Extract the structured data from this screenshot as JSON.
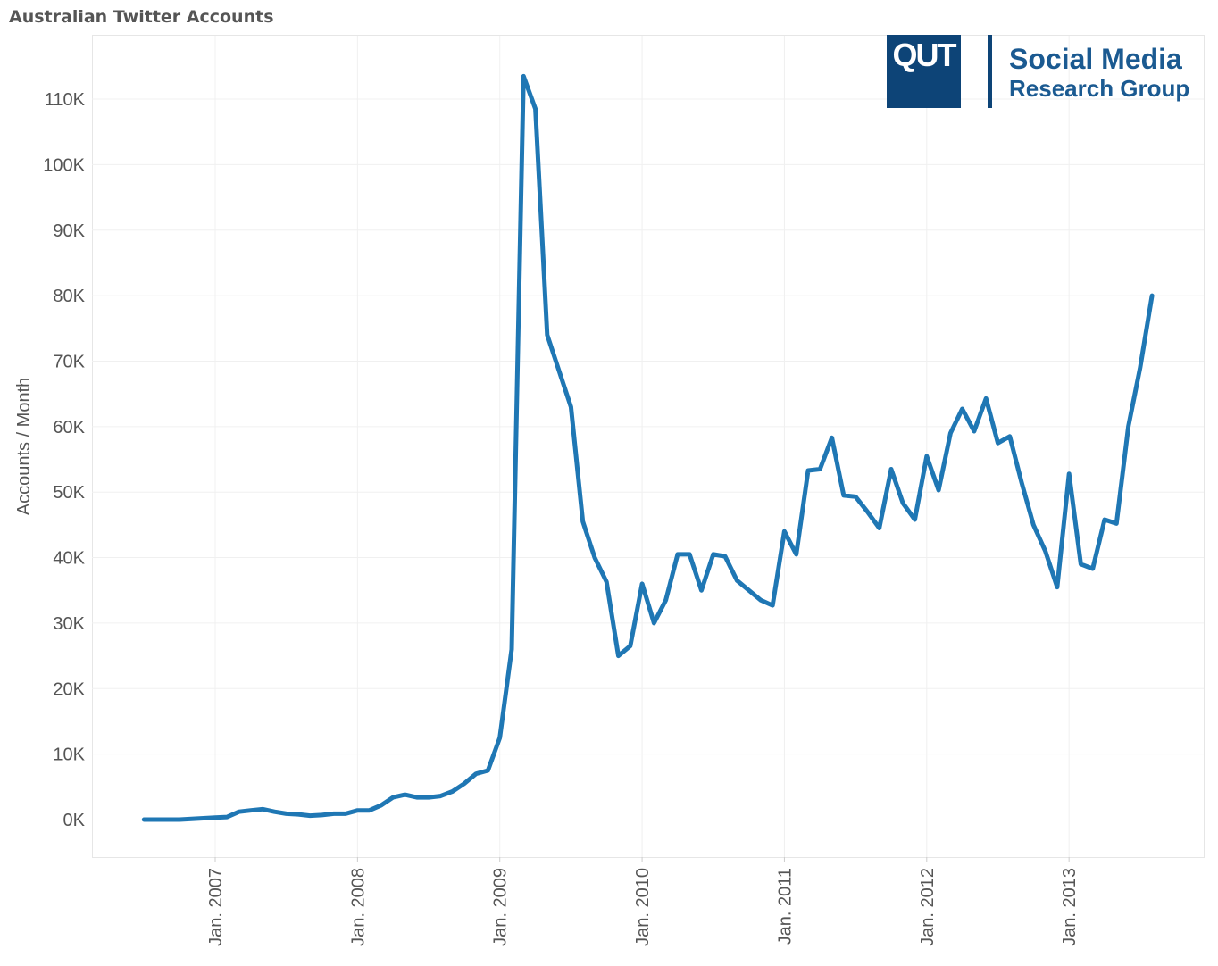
{
  "title": "Australian Twitter Accounts",
  "logo": {
    "mark": "QUT",
    "line1": "Social Media",
    "line2": "Research Group",
    "color": "#0d4477"
  },
  "chart_data": {
    "type": "line",
    "title": "Australian Twitter Accounts",
    "xlabel": "",
    "ylabel": "Accounts / Month",
    "ylim": [
      -6000,
      120000
    ],
    "grid": true,
    "line_color": "#1f77b4",
    "yticks": [
      {
        "v": 0,
        "label": "0K"
      },
      {
        "v": 10000,
        "label": "10K"
      },
      {
        "v": 20000,
        "label": "20K"
      },
      {
        "v": 30000,
        "label": "30K"
      },
      {
        "v": 40000,
        "label": "40K"
      },
      {
        "v": 50000,
        "label": "50K"
      },
      {
        "v": 60000,
        "label": "60K"
      },
      {
        "v": 70000,
        "label": "70K"
      },
      {
        "v": 80000,
        "label": "80K"
      },
      {
        "v": 90000,
        "label": "90K"
      },
      {
        "v": 100000,
        "label": "100K"
      },
      {
        "v": 110000,
        "label": "110K"
      }
    ],
    "xticks": [
      {
        "year": 2007,
        "label": "Jan. 2007"
      },
      {
        "year": 2008,
        "label": "Jan. 2008"
      },
      {
        "year": 2009,
        "label": "Jan. 2009"
      },
      {
        "year": 2010,
        "label": "Jan. 2010"
      },
      {
        "year": 2011,
        "label": "Jan. 2011"
      },
      {
        "year": 2012,
        "label": "Jan. 2012"
      },
      {
        "year": 2013,
        "label": "Jan. 2013"
      }
    ],
    "start_month": "2006-07",
    "series": [
      {
        "name": "Accounts / Month",
        "values": [
          0,
          0,
          0,
          0,
          100,
          200,
          300,
          400,
          1200,
          1400,
          1600,
          1200,
          900,
          800,
          600,
          700,
          900,
          900,
          1400,
          1400,
          2200,
          3400,
          3800,
          3400,
          3400,
          3600,
          4300,
          5500,
          7000,
          7500,
          12500,
          26000,
          113500,
          108500,
          74000,
          68500,
          63000,
          45500,
          40000,
          36300,
          25000,
          26500,
          36000,
          30000,
          33500,
          40500,
          40500,
          35000,
          40500,
          40200,
          36500,
          35000,
          33500,
          32700,
          44000,
          40500,
          53300,
          53500,
          58300,
          49500,
          49300,
          47000,
          44500,
          53500,
          48300,
          45800,
          55500,
          50300,
          59000,
          62700,
          59300,
          64300,
          57500,
          58500,
          51500,
          45000,
          41000,
          35500,
          52800,
          39000,
          38300,
          45800,
          45200,
          60000,
          69000,
          80000
        ]
      }
    ]
  }
}
